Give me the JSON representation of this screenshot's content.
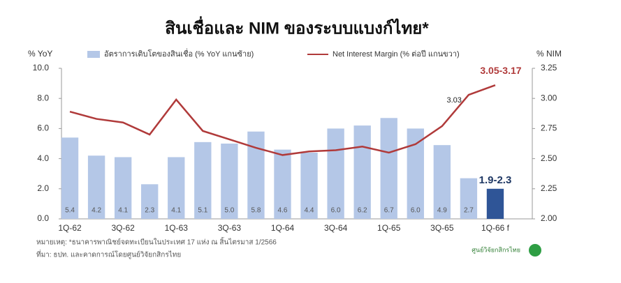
{
  "chart_data": {
    "type": "bar",
    "title": "สินเชื่อและ NIM ของระบบแบงก์ไทย*",
    "y_label": "% YoY",
    "y2_label": "% NIM",
    "categories": [
      "1Q-62",
      null,
      "3Q-62",
      null,
      "1Q-63",
      null,
      "3Q-63",
      null,
      "1Q-64",
      null,
      "3Q-64",
      null,
      "1Q-65",
      null,
      "3Q-65",
      null,
      "1Q-66 f"
    ],
    "series": [
      {
        "name": "อัตราการเติบโตของสินเชื่อ (% YoY แกนซ้าย)",
        "type": "bar",
        "color": "#b4c7e7",
        "colors": [
          "#b4c7e7",
          "#b4c7e7",
          "#b4c7e7",
          "#b4c7e7",
          "#b4c7e7",
          "#b4c7e7",
          "#b4c7e7",
          "#b4c7e7",
          "#b4c7e7",
          "#b4c7e7",
          "#b4c7e7",
          "#b4c7e7",
          "#b4c7e7",
          "#b4c7e7",
          "#b4c7e7",
          "#b4c7e7",
          "#2f5597"
        ],
        "values": [
          5.4,
          4.2,
          4.1,
          2.3,
          4.1,
          5.1,
          5.0,
          5.8,
          4.6,
          4.4,
          6.0,
          6.2,
          6.7,
          6.0,
          4.9,
          2.7,
          2.0
        ],
        "value_labels": [
          "5.4",
          "4.2",
          "4.1",
          "2.3",
          "4.1",
          "5.1",
          "5.0",
          "5.8",
          "4.6",
          "4.4",
          "6.0",
          "6.2",
          "6.7",
          "6.0",
          "4.9",
          "2.7",
          "1.9-2.3"
        ]
      },
      {
        "name": "Net Interest Margin (% ต่อปี แกนขวา)",
        "type": "line",
        "axis": "y2",
        "color": "#b03a3a",
        "values": [
          2.89,
          2.83,
          2.8,
          2.7,
          2.99,
          2.73,
          2.66,
          2.59,
          2.53,
          2.56,
          2.57,
          2.6,
          2.55,
          2.62,
          2.77,
          3.03,
          3.11
        ],
        "value_labels": [
          null,
          null,
          null,
          null,
          null,
          null,
          null,
          null,
          null,
          null,
          null,
          null,
          null,
          null,
          null,
          "3.03",
          "3.05-3.17"
        ]
      }
    ],
    "ylim": [
      0,
      10
    ],
    "yticks": [
      {
        "value": 0,
        "label": "0.0"
      },
      {
        "value": 2,
        "label": "2.0"
      },
      {
        "value": 4,
        "label": "4.0"
      },
      {
        "value": 6,
        "label": "6.0"
      },
      {
        "value": 8,
        "label": "8.0"
      },
      {
        "value": 10,
        "label": "10.0"
      }
    ],
    "y2lim": [
      2,
      3.25
    ],
    "y2ticks": [
      {
        "value": 2,
        "label": "2.00"
      },
      {
        "value": 2.25,
        "label": "2.25"
      },
      {
        "value": 2.5,
        "label": "2.50"
      },
      {
        "value": 2.75,
        "label": "2.75"
      },
      {
        "value": 3,
        "label": "3.00"
      },
      {
        "value": 3.25,
        "label": "3.25"
      }
    ],
    "grid": false,
    "notes": [
      "หมายเหตุ: *ธนาคารพาณิชย์จดทะเบียนในประเทศ 17 แห่ง ณ สิ้นไตรมาส 1/2566",
      "ที่มา: ธปท. และคาดการณ์โดยศูนย์วิจัยกสิกรไทย"
    ],
    "logo": "ศูนย์วิจัยกสิกรไทย"
  }
}
